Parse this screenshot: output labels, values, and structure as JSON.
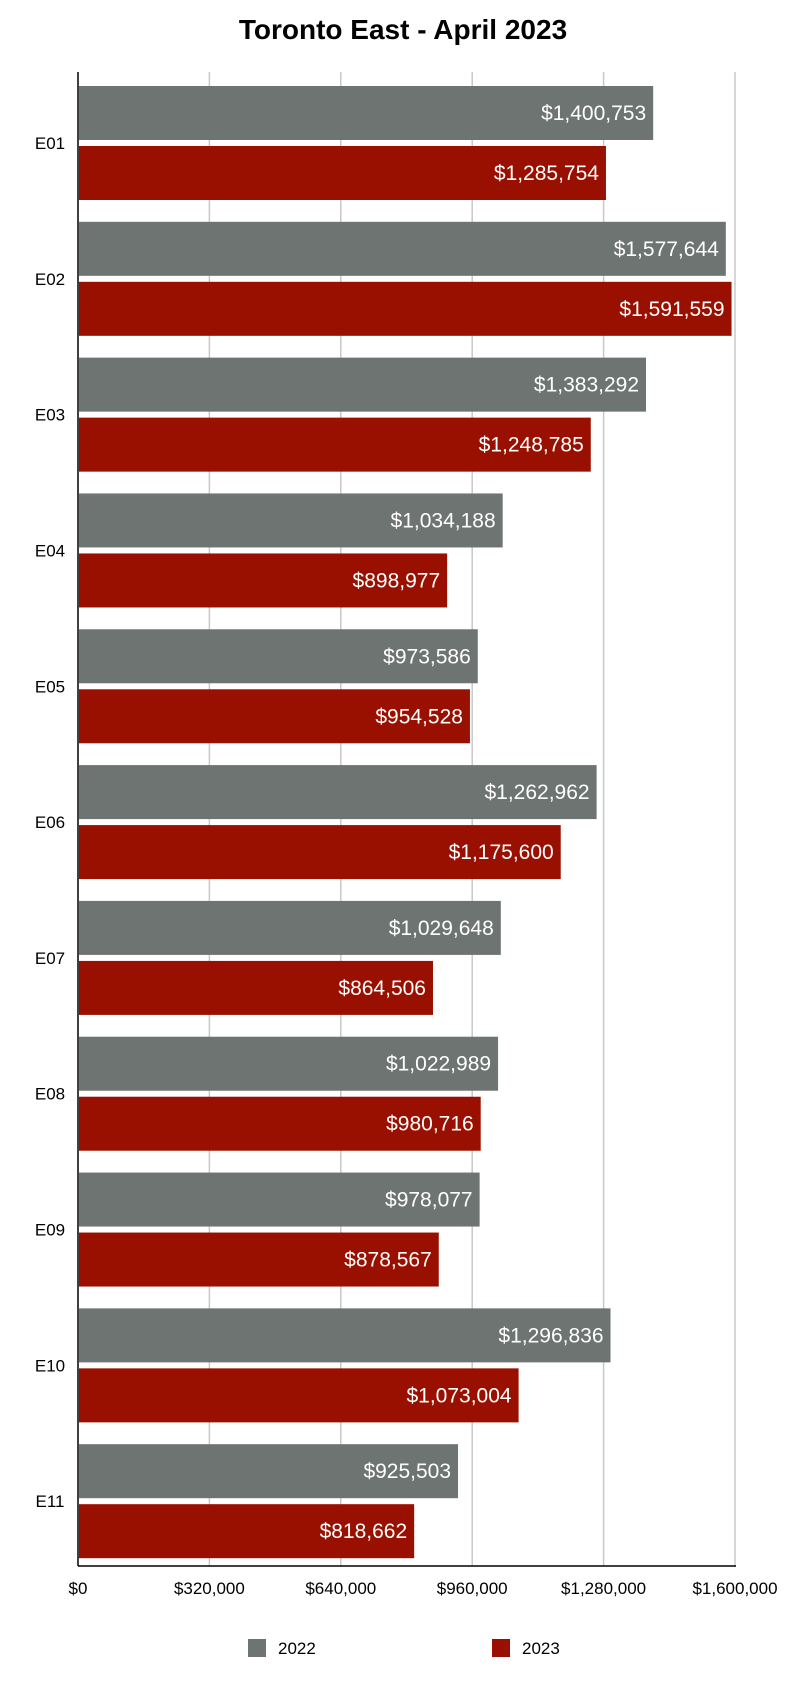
{
  "chart_data": {
    "type": "bar",
    "orientation": "horizontal",
    "title": "Toronto East - April 2023",
    "xlabel": "",
    "ylabel": "",
    "categories": [
      "E01",
      "E02",
      "E03",
      "E04",
      "E05",
      "E06",
      "E07",
      "E08",
      "E09",
      "E10",
      "E11"
    ],
    "series": [
      {
        "name": "2022",
        "color": "#6e7471",
        "values": [
          1400753,
          1577644,
          1383292,
          1034188,
          973586,
          1262962,
          1029648,
          1022989,
          978077,
          1296836,
          925503
        ],
        "labels": [
          "$1,400,753",
          "$1,577,644",
          "$1,383,292",
          "$1,034,188",
          "$973,586",
          "$1,262,962",
          "$1,029,648",
          "$1,022,989",
          "$978,077",
          "$1,296,836",
          "$925,503"
        ]
      },
      {
        "name": "2023",
        "color": "#9a1000",
        "values": [
          1285754,
          1591559,
          1248785,
          898977,
          954528,
          1175600,
          864506,
          980716,
          878567,
          1073004,
          818662
        ],
        "labels": [
          "$1,285,754",
          "$1,591,559",
          "$1,248,785",
          "$898,977",
          "$954,528",
          "$1,175,600",
          "$864,506",
          "$980,716",
          "$878,567",
          "$1,073,004",
          "$818,662"
        ]
      }
    ],
    "xlim": [
      0,
      1600000
    ],
    "ticks": [
      0,
      320000,
      640000,
      960000,
      1280000,
      1600000
    ],
    "tick_labels": [
      "$0",
      "$320,000",
      "$640,000",
      "$960,000",
      "$1,280,000",
      "$1,600,000"
    ],
    "grid": true,
    "legend_position": "bottom"
  }
}
